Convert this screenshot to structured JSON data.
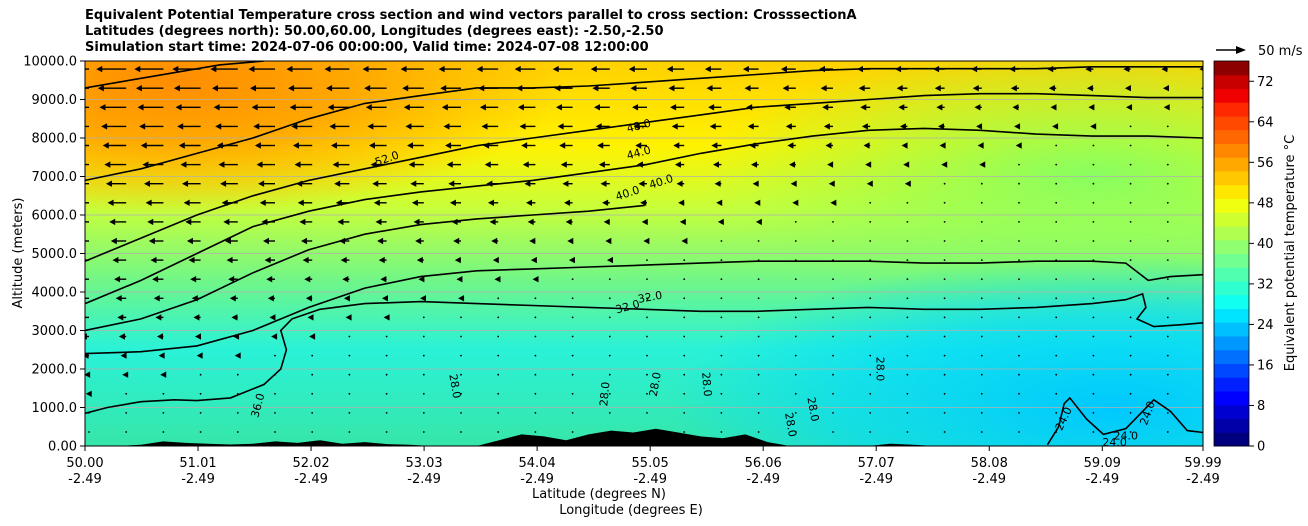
{
  "chart_data": {
    "type": "heatmap",
    "title_lines": [
      "Equivalent Potential Temperature cross section and wind vectors parallel to cross section: CrosssectionA",
      "Latitudes (degrees north): 50.00,60.00, Longitudes (degrees east): -2.50,-2.50",
      "Simulation start time: 2024-07-06 00:00:00, Valid time: 2024-07-08 12:00:00"
    ],
    "ylabel": "Altitude (meters)",
    "xlabel_lat": "Latitude (degrees N)",
    "xlabel_lon": "Longitude (degrees E)",
    "ylim": [
      0,
      10000
    ],
    "xlim": [
      50.0,
      59.99
    ],
    "y_ticks": [
      {
        "value": 0,
        "label": "0.00"
      },
      {
        "value": 1000,
        "label": "1000.0"
      },
      {
        "value": 2000,
        "label": "2000.0"
      },
      {
        "value": 3000,
        "label": "3000.0"
      },
      {
        "value": 4000,
        "label": "4000.0"
      },
      {
        "value": 5000,
        "label": "5000.0"
      },
      {
        "value": 6000,
        "label": "6000.0"
      },
      {
        "value": 7000,
        "label": "7000.0"
      },
      {
        "value": 8000,
        "label": "8000.0"
      },
      {
        "value": 9000,
        "label": "9000.0"
      },
      {
        "value": 10000,
        "label": "10000.0"
      }
    ],
    "x_ticks": [
      {
        "value": 50.0,
        "lat": "50.00",
        "lon": "-2.49"
      },
      {
        "value": 51.01,
        "lat": "51.01",
        "lon": "-2.49"
      },
      {
        "value": 52.02,
        "lat": "52.02",
        "lon": "-2.49"
      },
      {
        "value": 53.03,
        "lat": "53.03",
        "lon": "-2.49"
      },
      {
        "value": 54.04,
        "lat": "54.04",
        "lon": "-2.49"
      },
      {
        "value": 55.05,
        "lat": "55.05",
        "lon": "-2.49"
      },
      {
        "value": 56.06,
        "lat": "56.06",
        "lon": "-2.49"
      },
      {
        "value": 57.07,
        "lat": "57.07",
        "lon": "-2.49"
      },
      {
        "value": 58.08,
        "lat": "58.08",
        "lon": "-2.49"
      },
      {
        "value": 59.09,
        "lat": "59.09",
        "lon": "-2.49"
      },
      {
        "value": 59.99,
        "lat": "59.99",
        "lon": "-2.49"
      }
    ],
    "colorbar": {
      "label": "Equivalent potential temperature °C",
      "range": [
        0,
        76
      ],
      "tick_values": [
        0,
        8,
        16,
        24,
        32,
        40,
        48,
        56,
        64,
        72
      ],
      "tick_labels": [
        "0",
        "8",
        "16",
        "24",
        "32",
        "40",
        "48",
        "56",
        "64",
        "72"
      ]
    },
    "quiver_key": "50 m/s",
    "grid": "horizontal",
    "contours": [
      {
        "level": 24,
        "points": [
          [
            58.6,
            30
          ],
          [
            58.7,
            500
          ],
          [
            58.75,
            1100
          ],
          [
            58.8,
            1250
          ],
          [
            58.95,
            700
          ],
          [
            59.1,
            300
          ],
          [
            59.3,
            450
          ],
          [
            59.45,
            900
          ],
          [
            59.55,
            1200
          ],
          [
            59.7,
            900
          ],
          [
            59.85,
            400
          ],
          [
            59.99,
            350
          ]
        ]
      },
      {
        "level": 28,
        "points": [
          [
            50.0,
            850
          ],
          [
            50.2,
            1000
          ],
          [
            50.5,
            1150
          ],
          [
            50.8,
            1200
          ],
          [
            51.0,
            1180
          ],
          [
            51.3,
            1250
          ],
          [
            51.6,
            1600
          ],
          [
            51.75,
            2000
          ],
          [
            51.8,
            2500
          ],
          [
            51.75,
            3000
          ],
          [
            51.85,
            3300
          ],
          [
            52.1,
            3550
          ],
          [
            52.5,
            3700
          ],
          [
            53.0,
            3750
          ],
          [
            53.5,
            3700
          ],
          [
            54.0,
            3650
          ],
          [
            54.5,
            3600
          ],
          [
            55.0,
            3550
          ],
          [
            55.5,
            3500
          ],
          [
            56.0,
            3500
          ],
          [
            56.5,
            3550
          ],
          [
            57.0,
            3600
          ],
          [
            57.5,
            3550
          ],
          [
            58.0,
            3550
          ],
          [
            58.5,
            3600
          ],
          [
            59.0,
            3700
          ],
          [
            59.3,
            3800
          ],
          [
            59.45,
            3950
          ],
          [
            59.48,
            3600
          ],
          [
            59.4,
            3300
          ],
          [
            59.55,
            3100
          ],
          [
            59.8,
            3150
          ],
          [
            59.99,
            3200
          ]
        ]
      },
      {
        "level": 32,
        "points": [
          [
            50.0,
            2400
          ],
          [
            50.5,
            2450
          ],
          [
            51.0,
            2600
          ],
          [
            51.5,
            3000
          ],
          [
            52.0,
            3600
          ],
          [
            52.5,
            4100
          ],
          [
            53.0,
            4400
          ],
          [
            53.5,
            4550
          ],
          [
            54.0,
            4600
          ],
          [
            54.5,
            4650
          ],
          [
            55.0,
            4700
          ],
          [
            55.5,
            4750
          ],
          [
            56.0,
            4800
          ],
          [
            56.5,
            4800
          ],
          [
            57.0,
            4800
          ],
          [
            57.5,
            4750
          ],
          [
            58.0,
            4750
          ],
          [
            58.5,
            4800
          ],
          [
            59.0,
            4800
          ],
          [
            59.3,
            4750
          ],
          [
            59.5,
            4300
          ],
          [
            59.7,
            4400
          ],
          [
            59.99,
            4450
          ]
        ]
      },
      {
        "level": 36,
        "points": [
          [
            50.0,
            3000
          ],
          [
            50.5,
            3300
          ],
          [
            51.0,
            3800
          ],
          [
            51.5,
            4500
          ],
          [
            52.0,
            5100
          ],
          [
            52.5,
            5500
          ],
          [
            53.0,
            5750
          ],
          [
            53.5,
            5900
          ],
          [
            54.0,
            6000
          ],
          [
            54.5,
            6100
          ],
          [
            55.0,
            6250
          ]
        ]
      },
      {
        "level": 40,
        "points": [
          [
            50.0,
            3700
          ],
          [
            50.5,
            4300
          ],
          [
            51.0,
            5000
          ],
          [
            51.5,
            5700
          ],
          [
            52.0,
            6100
          ],
          [
            52.5,
            6400
          ],
          [
            53.0,
            6600
          ],
          [
            53.5,
            6750
          ],
          [
            54.0,
            6900
          ],
          [
            54.5,
            7100
          ],
          [
            55.0,
            7300
          ],
          [
            55.5,
            7600
          ],
          [
            56.0,
            7850
          ],
          [
            56.5,
            8050
          ],
          [
            57.0,
            8200
          ],
          [
            57.5,
            8250
          ],
          [
            58.0,
            8200
          ],
          [
            58.5,
            8100
          ],
          [
            59.0,
            8050
          ],
          [
            59.5,
            8050
          ],
          [
            59.99,
            8000
          ]
        ]
      },
      {
        "level": 44,
        "points": [
          [
            50.0,
            4800
          ],
          [
            50.5,
            5400
          ],
          [
            51.0,
            6000
          ],
          [
            51.5,
            6500
          ],
          [
            52.0,
            6900
          ],
          [
            52.5,
            7200
          ],
          [
            53.0,
            7500
          ],
          [
            53.5,
            7800
          ],
          [
            54.0,
            8000
          ],
          [
            54.5,
            8200
          ],
          [
            55.0,
            8400
          ],
          [
            55.5,
            8600
          ],
          [
            56.0,
            8800
          ],
          [
            56.5,
            8900
          ],
          [
            57.0,
            9000
          ],
          [
            57.5,
            9100
          ],
          [
            58.0,
            9150
          ],
          [
            58.5,
            9150
          ],
          [
            59.0,
            9100
          ],
          [
            59.5,
            9050
          ],
          [
            59.99,
            9050
          ]
        ]
      },
      {
        "level": 48,
        "points": [
          [
            50.0,
            6900
          ],
          [
            50.5,
            7200
          ],
          [
            51.0,
            7600
          ],
          [
            51.5,
            8000
          ],
          [
            52.0,
            8500
          ],
          [
            52.5,
            8900
          ],
          [
            53.0,
            9100
          ],
          [
            53.5,
            9300
          ],
          [
            54.0,
            9300
          ],
          [
            54.5,
            9350
          ],
          [
            55.0,
            9450
          ],
          [
            55.5,
            9550
          ],
          [
            56.0,
            9650
          ],
          [
            56.5,
            9750
          ],
          [
            57.0,
            9800
          ],
          [
            57.5,
            9800
          ],
          [
            58.0,
            9800
          ],
          [
            58.5,
            9800
          ],
          [
            59.0,
            9850
          ],
          [
            59.99,
            9850
          ]
        ]
      },
      {
        "level": 52,
        "points": [
          [
            50.0,
            9300
          ],
          [
            50.6,
            9600
          ],
          [
            51.2,
            9900
          ],
          [
            51.6,
            10000
          ]
        ]
      }
    ],
    "contour_labels": [
      {
        "text": "52.0",
        "x": 52.7,
        "y": 7450,
        "angle": -20
      },
      {
        "text": "48.0",
        "x": 54.95,
        "y": 8300,
        "angle": -15
      },
      {
        "text": "44.0",
        "x": 54.95,
        "y": 7600,
        "angle": -15
      },
      {
        "text": "40.0",
        "x": 54.85,
        "y": 6550,
        "angle": -18
      },
      {
        "text": "40.0",
        "x": 55.15,
        "y": 6850,
        "angle": -18
      },
      {
        "text": "32.0",
        "x": 54.85,
        "y": 3600,
        "angle": -15
      },
      {
        "text": "32.0",
        "x": 55.05,
        "y": 3850,
        "angle": -10
      },
      {
        "text": "36.0",
        "x": 51.55,
        "y": 1050,
        "angle": -75
      },
      {
        "text": "28.0",
        "x": 53.3,
        "y": 1550,
        "angle": 80
      },
      {
        "text": "28.0",
        "x": 54.65,
        "y": 1350,
        "angle": -85
      },
      {
        "text": "28.0",
        "x": 55.1,
        "y": 1600,
        "angle": -80
      },
      {
        "text": "28.0",
        "x": 55.55,
        "y": 1600,
        "angle": 85
      },
      {
        "text": "28.0",
        "x": 56.3,
        "y": 550,
        "angle": 80
      },
      {
        "text": "28.0",
        "x": 56.5,
        "y": 950,
        "angle": 80
      },
      {
        "text": "28.0",
        "x": 57.1,
        "y": 2000,
        "angle": 90
      },
      {
        "text": "24.0",
        "x": 58.75,
        "y": 700,
        "angle": -65
      },
      {
        "text": "24.0",
        "x": 59.5,
        "y": 850,
        "angle": -70
      },
      {
        "text": "24.0",
        "x": 59.3,
        "y": 250,
        "angle": 0
      },
      {
        "text": "24.0",
        "x": 59.2,
        "y": 80,
        "angle": 0
      }
    ],
    "terrain": [
      [
        50.0,
        0
      ],
      [
        50.3,
        0
      ],
      [
        50.5,
        30
      ],
      [
        50.7,
        120
      ],
      [
        50.9,
        80
      ],
      [
        51.1,
        60
      ],
      [
        51.3,
        40
      ],
      [
        51.5,
        60
      ],
      [
        51.7,
        120
      ],
      [
        51.9,
        80
      ],
      [
        52.1,
        150
      ],
      [
        52.3,
        60
      ],
      [
        52.5,
        100
      ],
      [
        52.7,
        50
      ],
      [
        52.9,
        30
      ],
      [
        53.1,
        0
      ],
      [
        53.5,
        0
      ],
      [
        53.7,
        150
      ],
      [
        53.9,
        300
      ],
      [
        54.1,
        250
      ],
      [
        54.3,
        150
      ],
      [
        54.5,
        300
      ],
      [
        54.7,
        400
      ],
      [
        54.9,
        350
      ],
      [
        55.1,
        450
      ],
      [
        55.3,
        350
      ],
      [
        55.5,
        250
      ],
      [
        55.7,
        200
      ],
      [
        55.9,
        300
      ],
      [
        56.1,
        100
      ],
      [
        56.3,
        0
      ],
      [
        57.0,
        0
      ],
      [
        57.2,
        60
      ],
      [
        57.4,
        30
      ],
      [
        57.6,
        0
      ],
      [
        59.99,
        0
      ]
    ]
  }
}
